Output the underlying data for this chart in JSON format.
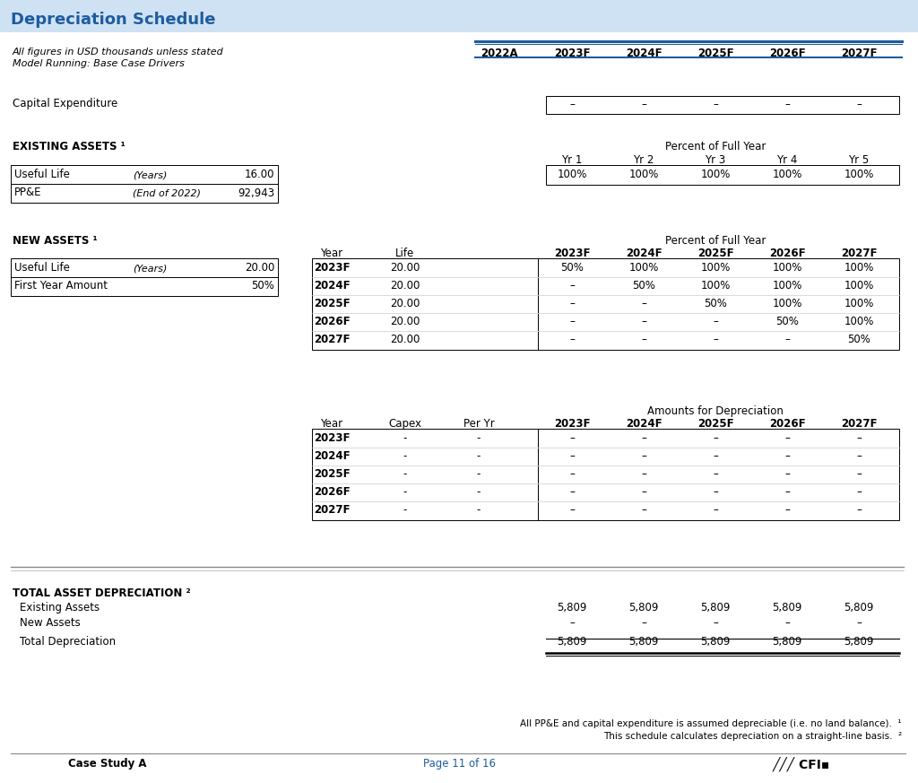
{
  "title": "Depreciation Schedule",
  "title_bg_color": "#cfe2f3",
  "title_text_color": "#1f5c9e",
  "header_line1": "All figures in USD thousands unless stated",
  "header_line2": "Model Running: Base Case Drivers",
  "col_headers": [
    "2022A",
    "2023F",
    "2024F",
    "2025F",
    "2026F",
    "2027F"
  ],
  "col_header_underline_color": "#1f5c9e",
  "capex_label": "Capital Expenditure",
  "capex_values": [
    "–",
    "–",
    "–",
    "–",
    "–"
  ],
  "existing_assets_header": "EXISTING ASSETS ¹",
  "existing_pof_header": "Percent of Full Year",
  "existing_yr_headers": [
    "Yr 1",
    "Yr 2",
    "Yr 3",
    "Yr 4",
    "Yr 5"
  ],
  "existing_rows": [
    [
      "Useful Life",
      "(Years)",
      "16.00"
    ],
    [
      "PP&E",
      "(End of 2022)",
      "92,943"
    ]
  ],
  "existing_pof_values": [
    "100%",
    "100%",
    "100%",
    "100%",
    "100%"
  ],
  "new_assets_header": "NEW ASSETS ¹",
  "new_rows_left": [
    [
      "Useful Life",
      "(Years)",
      "20.00"
    ],
    [
      "First Year Amount",
      "",
      "50%"
    ]
  ],
  "new_assets_pof_header": "Percent of Full Year",
  "new_assets_year_life_headers": [
    "Year",
    "Life",
    "2023F",
    "2024F",
    "2025F",
    "2026F",
    "2027F"
  ],
  "new_assets_table": [
    [
      "2023F",
      "20.00",
      "50%",
      "100%",
      "100%",
      "100%",
      "100%"
    ],
    [
      "2024F",
      "20.00",
      "–",
      "50%",
      "100%",
      "100%",
      "100%"
    ],
    [
      "2025F",
      "20.00",
      "–",
      "–",
      "50%",
      "100%",
      "100%"
    ],
    [
      "2026F",
      "20.00",
      "–",
      "–",
      "–",
      "50%",
      "100%"
    ],
    [
      "2027F",
      "20.00",
      "–",
      "–",
      "–",
      "–",
      "50%"
    ]
  ],
  "amounts_depr_header": "Amounts for Depreciation",
  "amounts_year_headers": [
    "Year",
    "Capex",
    "Per Yr",
    "2023F",
    "2024F",
    "2025F",
    "2026F",
    "2027F"
  ],
  "amounts_table": [
    [
      "2023F",
      "-",
      "-",
      "–",
      "–",
      "–",
      "–",
      "–"
    ],
    [
      "2024F",
      "-",
      "-",
      "–",
      "–",
      "–",
      "–",
      "–"
    ],
    [
      "2025F",
      "-",
      "-",
      "–",
      "–",
      "–",
      "–",
      "–"
    ],
    [
      "2026F",
      "-",
      "-",
      "–",
      "–",
      "–",
      "–",
      "–"
    ],
    [
      "2027F",
      "-",
      "-",
      "–",
      "–",
      "–",
      "–",
      "–"
    ]
  ],
  "total_depr_header": "TOTAL ASSET DEPRECIATION ²",
  "total_existing_label": "Existing Assets",
  "total_new_label": "New Assets",
  "total_depr_label": "Total Depreciation",
  "total_existing": [
    "5,809",
    "5,809",
    "5,809",
    "5,809",
    "5,809"
  ],
  "total_new": [
    "–",
    "–",
    "–",
    "–",
    "–"
  ],
  "total_depr": [
    "5,809",
    "5,809",
    "5,809",
    "5,809",
    "5,809"
  ],
  "footnote1": "All PP&E and capital expenditure is assumed depreciable (i.e. no land balance).  ¹",
  "footnote2": "This schedule calculates depreciation on a straight-line basis.  ²",
  "footer_left": "Case Study A",
  "footer_center": "Page 11 of 16",
  "bg_color": "#ffffff",
  "text_color": "#000000",
  "table_border_color": "#000000",
  "separator_color": "#aaaaaa",
  "blue_line_color": "#1f5c9e"
}
